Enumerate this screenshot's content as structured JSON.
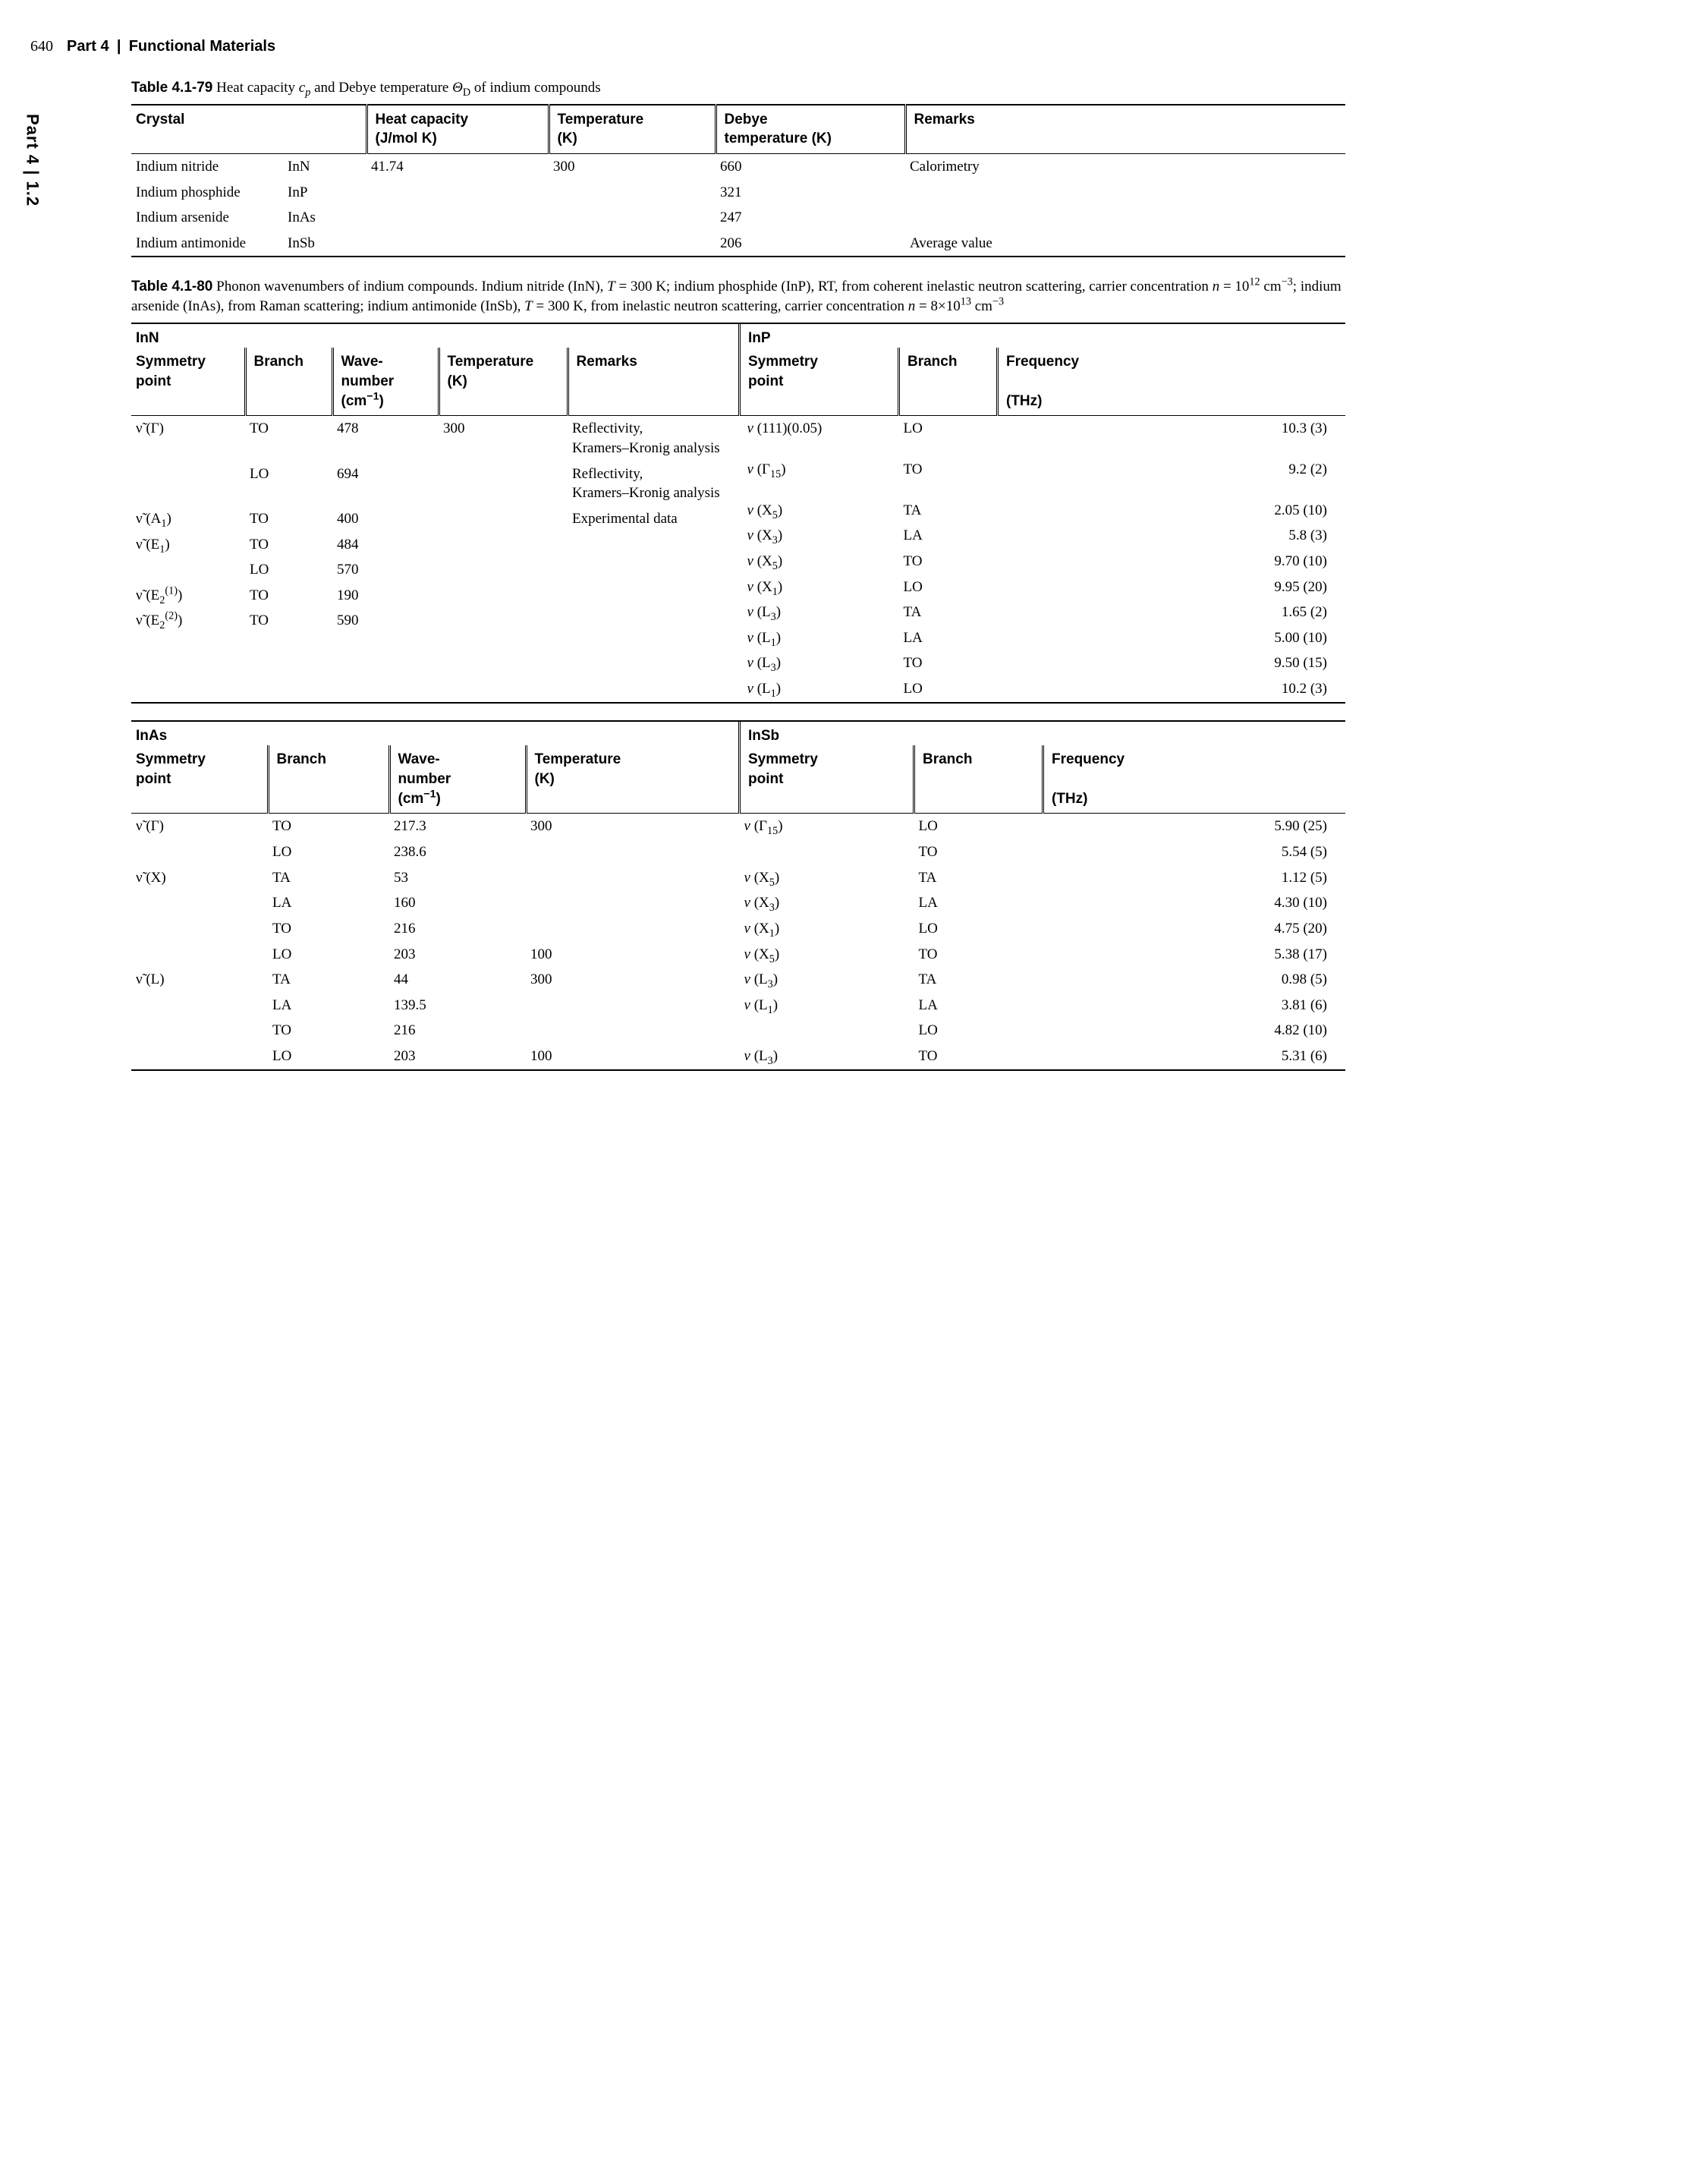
{
  "page": {
    "number": "640",
    "part": "Part 4",
    "chapter": "Functional Materials",
    "sidetab": "Part 4 | 1.2"
  },
  "table79": {
    "number": "Table 4.1-79",
    "caption_html": "Heat capacity <i>c<sub>p</sub></i> and Debye temperature <i>Θ</i><sub>D</sub> of indium compounds",
    "headers": {
      "crystal": "Crystal",
      "heat": "Heat capacity",
      "heat_unit": "(J/mol K)",
      "temp": "Temperature",
      "temp_unit": "(K)",
      "debye": "Debye",
      "debye_unit": "temperature (K)",
      "remarks": "Remarks"
    },
    "rows": [
      {
        "name": "Indium nitride",
        "formula": "InN",
        "cp": "41.74",
        "T": "300",
        "debye": "660",
        "remarks": "Calorimetry"
      },
      {
        "name": "Indium phosphide",
        "formula": "InP",
        "cp": "",
        "T": "",
        "debye": "321",
        "remarks": ""
      },
      {
        "name": "Indium arsenide",
        "formula": "InAs",
        "cp": "",
        "T": "",
        "debye": "247",
        "remarks": ""
      },
      {
        "name": "Indium antimonide",
        "formula": "InSb",
        "cp": "",
        "T": "",
        "debye": "206",
        "remarks": "Average value"
      }
    ]
  },
  "table80": {
    "number": "Table 4.1-80",
    "caption_html": "Phonon wavenumbers of indium compounds. Indium nitride (InN), <i>T</i> = 300 K; indium phosphide (InP), RT, from coherent inelastic neutron scattering, carrier concentration <i>n</i> = 10<sup>12</sup> cm<sup>−3</sup>; indium arsenide (InAs), from Raman scattering; indium antimonide (InSb), <i>T</i> = 300 K, from inelastic neutron scattering, carrier concentration <i>n</i> = 8×10<sup>13</sup> cm<sup>−3</sup>",
    "block1": {
      "left": {
        "title": "InN",
        "headers": {
          "sym": "Symmetry",
          "sym2": "point",
          "branch": "Branch",
          "wave": "Wave-",
          "wave2": "number",
          "wave3": "(cm<sup>−1</sup>)",
          "temp": "Temperature",
          "temp2": "(K)",
          "rem": "Remarks"
        },
        "rows": [
          {
            "sym": "ν̃ (Γ)",
            "branch": "TO",
            "wave": "478",
            "temp": "300",
            "rem": "Reflectivity,<br>Kramers–Kronig analysis"
          },
          {
            "sym": "",
            "branch": "LO",
            "wave": "694",
            "temp": "",
            "rem": "Reflectivity,<br>Kramers–Kronig analysis"
          },
          {
            "sym": "ν̃ (A<sub>1</sub>)",
            "branch": "TO",
            "wave": "400",
            "temp": "",
            "rem": "Experimental data"
          },
          {
            "sym": "ν̃ (E<sub>1</sub>)",
            "branch": "TO",
            "wave": "484",
            "temp": "",
            "rem": ""
          },
          {
            "sym": "",
            "branch": "LO",
            "wave": "570",
            "temp": "",
            "rem": ""
          },
          {
            "sym": "ν̃ (E<sub>2</sub><sup>(1)</sup>)",
            "branch": "TO",
            "wave": "190",
            "temp": "",
            "rem": ""
          },
          {
            "sym": "ν̃ (E<sub>2</sub><sup>(2)</sup>)",
            "branch": "TO",
            "wave": "590",
            "temp": "",
            "rem": ""
          }
        ]
      },
      "right": {
        "title": "InP",
        "headers": {
          "sym": "Symmetry",
          "sym2": "point",
          "branch": "Branch",
          "freq": "Frequency",
          "freq2": "",
          "freq3": "(THz)"
        },
        "rows": [
          {
            "sym": "<i>ν</i> (111)(0.05)",
            "branch": "LO",
            "freq": "10.3 (3)"
          },
          {
            "sym": "<i>ν</i> (Γ<sub>15</sub>)",
            "branch": "TO",
            "freq": "9.2 (2)"
          },
          {
            "sym": "<i>ν</i> (X<sub>5</sub>)",
            "branch": "TA",
            "freq": "2.05 (10)"
          },
          {
            "sym": "<i>ν</i> (X<sub>3</sub>)",
            "branch": "LA",
            "freq": "5.8 (3)"
          },
          {
            "sym": "<i>ν</i> (X<sub>5</sub>)",
            "branch": "TO",
            "freq": "9.70 (10)"
          },
          {
            "sym": "<i>ν</i> (X<sub>1</sub>)",
            "branch": "LO",
            "freq": "9.95 (20)"
          },
          {
            "sym": "<i>ν</i> (L<sub>3</sub>)",
            "branch": "TA",
            "freq": "1.65 (2)"
          },
          {
            "sym": "<i>ν</i> (L<sub>1</sub>)",
            "branch": "LA",
            "freq": "5.00 (10)"
          },
          {
            "sym": "<i>ν</i> (L<sub>3</sub>)",
            "branch": "TO",
            "freq": "9.50 (15)"
          },
          {
            "sym": "<i>ν</i> (L<sub>1</sub>)",
            "branch": "LO",
            "freq": "10.2 (3)"
          }
        ]
      }
    },
    "block2": {
      "left": {
        "title": "InAs",
        "headers": {
          "sym": "Symmetry",
          "sym2": "point",
          "branch": "Branch",
          "wave": "Wave-",
          "wave2": "number",
          "wave3": "(cm<sup>−1</sup>)",
          "temp": "Temperature",
          "temp2": "(K)"
        },
        "rows": [
          {
            "sym": "ν̃ (Γ)",
            "branch": "TO",
            "wave": "217.3",
            "temp": "300"
          },
          {
            "sym": "",
            "branch": "LO",
            "wave": "238.6",
            "temp": ""
          },
          {
            "sym": "ν̃ (X)",
            "branch": "TA",
            "wave": "53",
            "temp": ""
          },
          {
            "sym": "",
            "branch": "LA",
            "wave": "160",
            "temp": ""
          },
          {
            "sym": "",
            "branch": "TO",
            "wave": "216",
            "temp": ""
          },
          {
            "sym": "",
            "branch": "LO",
            "wave": "203",
            "temp": "100"
          },
          {
            "sym": "ν̃ (L)",
            "branch": "TA",
            "wave": "44",
            "temp": "300"
          },
          {
            "sym": "",
            "branch": "LA",
            "wave": "139.5",
            "temp": ""
          },
          {
            "sym": "",
            "branch": "TO",
            "wave": "216",
            "temp": ""
          },
          {
            "sym": "",
            "branch": "LO",
            "wave": "203",
            "temp": "100"
          }
        ]
      },
      "right": {
        "title": "InSb",
        "headers": {
          "sym": "Symmetry",
          "sym2": "point",
          "branch": "Branch",
          "freq": "Frequency",
          "freq2": "",
          "freq3": "(THz)"
        },
        "rows": [
          {
            "sym": "<i>ν</i> (Γ<sub>15</sub>)",
            "branch": "LO",
            "freq": "5.90 (25)"
          },
          {
            "sym": "",
            "branch": "TO",
            "freq": "5.54 (5)"
          },
          {
            "sym": "<i>ν</i> (X<sub>5</sub>)",
            "branch": "TA",
            "freq": "1.12 (5)"
          },
          {
            "sym": "<i>ν</i> (X<sub>3</sub>)",
            "branch": "LA",
            "freq": "4.30 (10)"
          },
          {
            "sym": "<i>ν</i> (X<sub>1</sub>)",
            "branch": "LO",
            "freq": "4.75 (20)"
          },
          {
            "sym": "<i>ν</i> (X<sub>5</sub>)",
            "branch": "TO",
            "freq": "5.38 (17)"
          },
          {
            "sym": "<i>ν</i> (L<sub>3</sub>)",
            "branch": "TA",
            "freq": "0.98 (5)"
          },
          {
            "sym": "<i>ν</i> (L<sub>1</sub>)",
            "branch": "LA",
            "freq": "3.81 (6)"
          },
          {
            "sym": "",
            "branch": "LO",
            "freq": "4.82 (10)"
          },
          {
            "sym": "<i>ν</i> (L<sub>3</sub>)",
            "branch": "TO",
            "freq": "5.31 (6)"
          }
        ]
      }
    }
  }
}
